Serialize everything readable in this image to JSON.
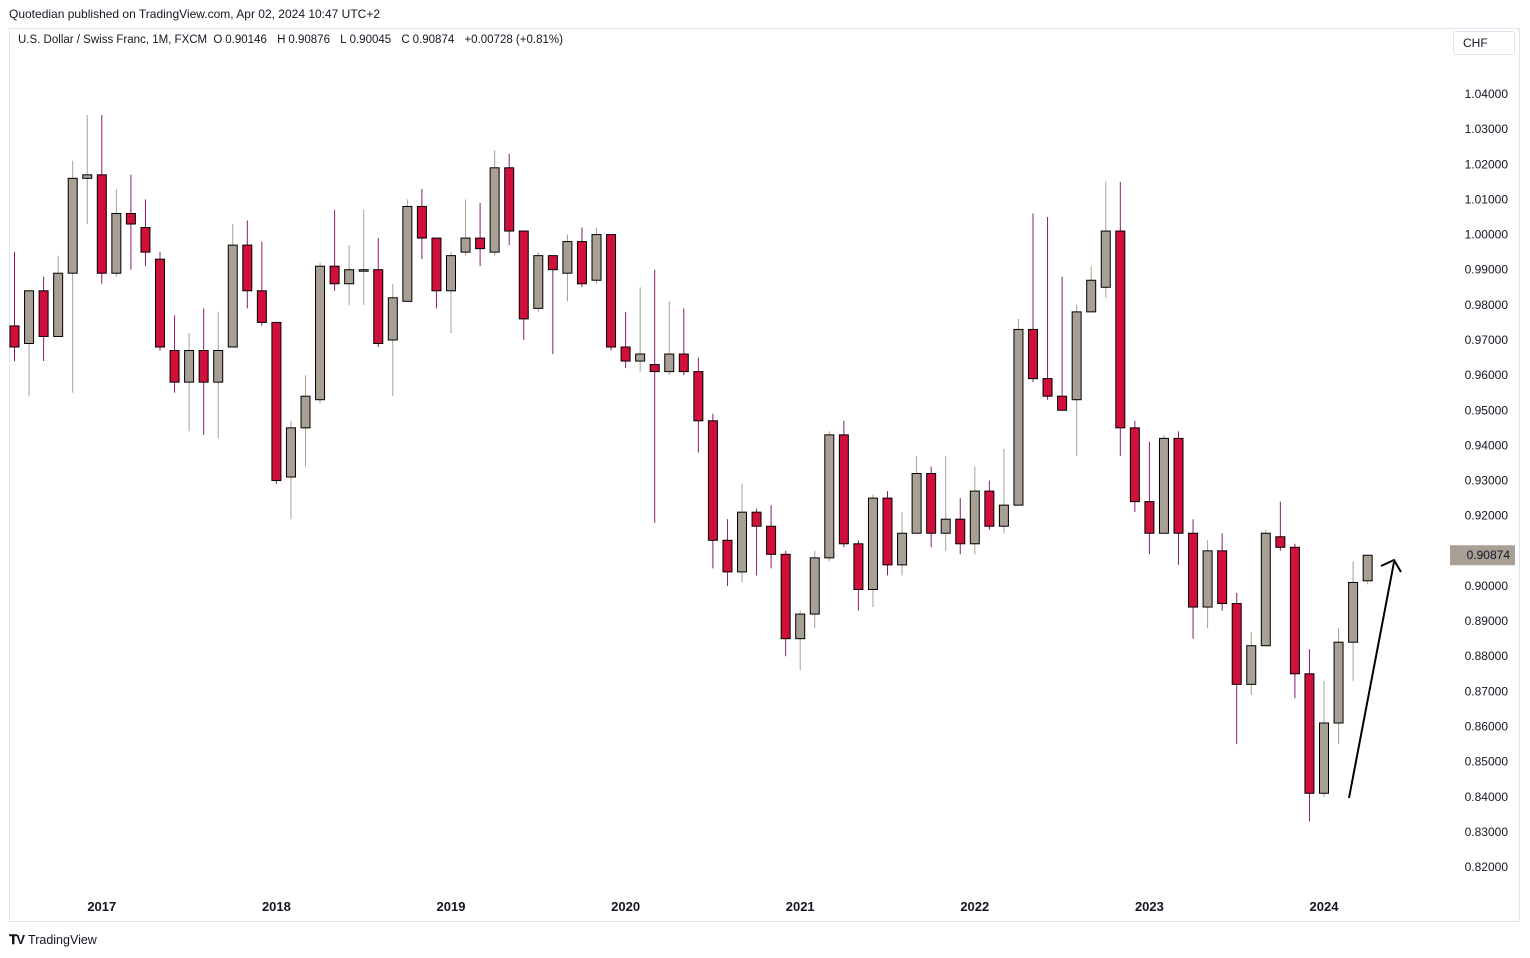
{
  "header": {
    "published": "Quotedian published on TradingView.com, Apr 02, 2024 10:47 UTC+2"
  },
  "legend": {
    "symbol": "U.S. Dollar / Swiss Franc, 1M, FXCM",
    "open_label": "O",
    "open": "0.90146",
    "high_label": "H",
    "high": "0.90876",
    "low_label": "L",
    "low": "0.90045",
    "close_label": "C",
    "close": "0.90874",
    "change": "+0.00728 (+0.81%)"
  },
  "currency": "CHF",
  "footer": {
    "logo_text": "TradingView"
  },
  "colors": {
    "up": "#a89f95",
    "down": "#d0103a",
    "up_wick": "#a89f95",
    "down_wick": "#8a1c6e",
    "price_label_bg": "#a89f95",
    "arrow": "#000000"
  },
  "chart_data": {
    "type": "candlestick",
    "title": "",
    "xlabel": "",
    "ylabel": "",
    "ylim": [
      0.815,
      1.067
    ],
    "y_ticks": [
      "1.04000",
      "1.03000",
      "1.02000",
      "1.01000",
      "1.00000",
      "0.99000",
      "0.98000",
      "0.97000",
      "0.96000",
      "0.95000",
      "0.94000",
      "0.93000",
      "0.92000",
      "0.91000",
      "0.90000",
      "0.89000",
      "0.88000",
      "0.87000",
      "0.86000",
      "0.85000",
      "0.84000",
      "0.83000",
      "0.82000"
    ],
    "x_ticks": [
      "2017",
      "2018",
      "2019",
      "2020",
      "2021",
      "2022",
      "2023",
      "2024"
    ],
    "last_price": "0.90874",
    "candles": [
      {
        "date": "2016-07",
        "o": 0.974,
        "h": 0.995,
        "l": 0.964,
        "c": 0.968
      },
      {
        "date": "2016-08",
        "o": 0.969,
        "h": 0.984,
        "l": 0.954,
        "c": 0.984
      },
      {
        "date": "2016-09",
        "o": 0.984,
        "h": 0.988,
        "l": 0.964,
        "c": 0.971
      },
      {
        "date": "2016-10",
        "o": 0.971,
        "h": 0.994,
        "l": 0.971,
        "c": 0.989
      },
      {
        "date": "2016-11",
        "o": 0.989,
        "h": 1.021,
        "l": 0.955,
        "c": 1.016
      },
      {
        "date": "2016-12",
        "o": 1.016,
        "h": 1.034,
        "l": 1.003,
        "c": 1.017
      },
      {
        "date": "2017-01",
        "o": 1.017,
        "h": 1.034,
        "l": 0.986,
        "c": 0.989
      },
      {
        "date": "2017-02",
        "o": 0.989,
        "h": 1.013,
        "l": 0.988,
        "c": 1.006
      },
      {
        "date": "2017-03",
        "o": 1.006,
        "h": 1.017,
        "l": 0.99,
        "c": 1.003
      },
      {
        "date": "2017-04",
        "o": 1.002,
        "h": 1.01,
        "l": 0.991,
        "c": 0.995
      },
      {
        "date": "2017-05",
        "o": 0.993,
        "h": 0.995,
        "l": 0.967,
        "c": 0.968
      },
      {
        "date": "2017-06",
        "o": 0.967,
        "h": 0.977,
        "l": 0.955,
        "c": 0.958
      },
      {
        "date": "2017-07",
        "o": 0.958,
        "h": 0.972,
        "l": 0.944,
        "c": 0.967
      },
      {
        "date": "2017-08",
        "o": 0.967,
        "h": 0.979,
        "l": 0.943,
        "c": 0.958
      },
      {
        "date": "2017-09",
        "o": 0.958,
        "h": 0.978,
        "l": 0.942,
        "c": 0.967
      },
      {
        "date": "2017-10",
        "o": 0.968,
        "h": 1.003,
        "l": 0.968,
        "c": 0.997
      },
      {
        "date": "2017-11",
        "o": 0.997,
        "h": 1.004,
        "l": 0.979,
        "c": 0.984
      },
      {
        "date": "2017-12",
        "o": 0.984,
        "h": 0.998,
        "l": 0.974,
        "c": 0.975
      },
      {
        "date": "2018-01",
        "o": 0.975,
        "h": 0.975,
        "l": 0.929,
        "c": 0.93
      },
      {
        "date": "2018-02",
        "o": 0.931,
        "h": 0.947,
        "l": 0.919,
        "c": 0.945
      },
      {
        "date": "2018-03",
        "o": 0.945,
        "h": 0.96,
        "l": 0.934,
        "c": 0.954
      },
      {
        "date": "2018-04",
        "o": 0.953,
        "h": 0.992,
        "l": 0.952,
        "c": 0.991
      },
      {
        "date": "2018-05",
        "o": 0.991,
        "h": 1.007,
        "l": 0.984,
        "c": 0.986
      },
      {
        "date": "2018-06",
        "o": 0.986,
        "h": 0.997,
        "l": 0.98,
        "c": 0.99
      },
      {
        "date": "2018-07",
        "o": 0.99,
        "h": 1.007,
        "l": 0.98,
        "c": 0.99
      },
      {
        "date": "2018-08",
        "o": 0.99,
        "h": 0.999,
        "l": 0.968,
        "c": 0.969
      },
      {
        "date": "2018-09",
        "o": 0.97,
        "h": 0.986,
        "l": 0.954,
        "c": 0.982
      },
      {
        "date": "2018-10",
        "o": 0.981,
        "h": 1.01,
        "l": 0.981,
        "c": 1.008
      },
      {
        "date": "2018-11",
        "o": 1.008,
        "h": 1.013,
        "l": 0.993,
        "c": 0.999
      },
      {
        "date": "2018-12",
        "o": 0.999,
        "h": 0.999,
        "l": 0.979,
        "c": 0.984
      },
      {
        "date": "2019-01",
        "o": 0.984,
        "h": 0.995,
        "l": 0.972,
        "c": 0.994
      },
      {
        "date": "2019-02",
        "o": 0.995,
        "h": 1.01,
        "l": 0.994,
        "c": 0.999
      },
      {
        "date": "2019-03",
        "o": 0.999,
        "h": 1.009,
        "l": 0.991,
        "c": 0.996
      },
      {
        "date": "2019-04",
        "o": 0.995,
        "h": 1.024,
        "l": 0.994,
        "c": 1.019
      },
      {
        "date": "2019-05",
        "o": 1.019,
        "h": 1.023,
        "l": 0.997,
        "c": 1.001
      },
      {
        "date": "2019-06",
        "o": 1.001,
        "h": 1.001,
        "l": 0.97,
        "c": 0.976
      },
      {
        "date": "2019-07",
        "o": 0.979,
        "h": 0.995,
        "l": 0.978,
        "c": 0.994
      },
      {
        "date": "2019-08",
        "o": 0.994,
        "h": 0.994,
        "l": 0.966,
        "c": 0.99
      },
      {
        "date": "2019-09",
        "o": 0.989,
        "h": 1.0,
        "l": 0.981,
        "c": 0.998
      },
      {
        "date": "2019-10",
        "o": 0.998,
        "h": 1.002,
        "l": 0.985,
        "c": 0.986
      },
      {
        "date": "2019-11",
        "o": 0.987,
        "h": 1.002,
        "l": 0.986,
        "c": 1.0
      },
      {
        "date": "2019-12",
        "o": 1.0,
        "h": 1.0,
        "l": 0.967,
        "c": 0.968
      },
      {
        "date": "2020-01",
        "o": 0.968,
        "h": 0.978,
        "l": 0.962,
        "c": 0.964
      },
      {
        "date": "2020-02",
        "o": 0.964,
        "h": 0.985,
        "l": 0.961,
        "c": 0.966
      },
      {
        "date": "2020-03",
        "o": 0.963,
        "h": 0.99,
        "l": 0.918,
        "c": 0.961
      },
      {
        "date": "2020-04",
        "o": 0.961,
        "h": 0.981,
        "l": 0.96,
        "c": 0.966
      },
      {
        "date": "2020-05",
        "o": 0.966,
        "h": 0.979,
        "l": 0.96,
        "c": 0.961
      },
      {
        "date": "2020-06",
        "o": 0.961,
        "h": 0.965,
        "l": 0.938,
        "c": 0.947
      },
      {
        "date": "2020-07",
        "o": 0.947,
        "h": 0.949,
        "l": 0.905,
        "c": 0.913
      },
      {
        "date": "2020-08",
        "o": 0.913,
        "h": 0.919,
        "l": 0.9,
        "c": 0.904
      },
      {
        "date": "2020-09",
        "o": 0.904,
        "h": 0.929,
        "l": 0.901,
        "c": 0.921
      },
      {
        "date": "2020-10",
        "o": 0.921,
        "h": 0.922,
        "l": 0.903,
        "c": 0.917
      },
      {
        "date": "2020-11",
        "o": 0.917,
        "h": 0.923,
        "l": 0.905,
        "c": 0.909
      },
      {
        "date": "2020-12",
        "o": 0.909,
        "h": 0.91,
        "l": 0.88,
        "c": 0.885
      },
      {
        "date": "2021-01",
        "o": 0.885,
        "h": 0.893,
        "l": 0.876,
        "c": 0.892
      },
      {
        "date": "2021-02",
        "o": 0.892,
        "h": 0.91,
        "l": 0.888,
        "c": 0.908
      },
      {
        "date": "2021-03",
        "o": 0.908,
        "h": 0.944,
        "l": 0.907,
        "c": 0.943
      },
      {
        "date": "2021-04",
        "o": 0.943,
        "h": 0.947,
        "l": 0.911,
        "c": 0.912
      },
      {
        "date": "2021-05",
        "o": 0.912,
        "h": 0.913,
        "l": 0.893,
        "c": 0.899
      },
      {
        "date": "2021-06",
        "o": 0.899,
        "h": 0.926,
        "l": 0.894,
        "c": 0.925
      },
      {
        "date": "2021-07",
        "o": 0.925,
        "h": 0.927,
        "l": 0.903,
        "c": 0.906
      },
      {
        "date": "2021-08",
        "o": 0.906,
        "h": 0.921,
        "l": 0.903,
        "c": 0.915
      },
      {
        "date": "2021-09",
        "o": 0.915,
        "h": 0.937,
        "l": 0.915,
        "c": 0.932
      },
      {
        "date": "2021-10",
        "o": 0.932,
        "h": 0.934,
        "l": 0.911,
        "c": 0.915
      },
      {
        "date": "2021-11",
        "o": 0.915,
        "h": 0.937,
        "l": 0.91,
        "c": 0.919
      },
      {
        "date": "2021-12",
        "o": 0.919,
        "h": 0.925,
        "l": 0.909,
        "c": 0.912
      },
      {
        "date": "2022-01",
        "o": 0.912,
        "h": 0.934,
        "l": 0.909,
        "c": 0.927
      },
      {
        "date": "2022-02",
        "o": 0.927,
        "h": 0.93,
        "l": 0.916,
        "c": 0.917
      },
      {
        "date": "2022-03",
        "o": 0.917,
        "h": 0.939,
        "l": 0.915,
        "c": 0.923
      },
      {
        "date": "2022-04",
        "o": 0.923,
        "h": 0.976,
        "l": 0.923,
        "c": 0.973
      },
      {
        "date": "2022-05",
        "o": 0.973,
        "h": 1.006,
        "l": 0.958,
        "c": 0.959
      },
      {
        "date": "2022-06",
        "o": 0.959,
        "h": 1.005,
        "l": 0.953,
        "c": 0.954
      },
      {
        "date": "2022-07",
        "o": 0.954,
        "h": 0.988,
        "l": 0.95,
        "c": 0.95
      },
      {
        "date": "2022-08",
        "o": 0.953,
        "h": 0.98,
        "l": 0.937,
        "c": 0.978
      },
      {
        "date": "2022-09",
        "o": 0.978,
        "h": 0.991,
        "l": 0.978,
        "c": 0.987
      },
      {
        "date": "2022-10",
        "o": 0.985,
        "h": 1.015,
        "l": 0.982,
        "c": 1.001
      },
      {
        "date": "2022-11",
        "o": 1.001,
        "h": 1.015,
        "l": 0.937,
        "c": 0.945
      },
      {
        "date": "2022-12",
        "o": 0.945,
        "h": 0.947,
        "l": 0.921,
        "c": 0.924
      },
      {
        "date": "2023-01",
        "o": 0.924,
        "h": 0.941,
        "l": 0.909,
        "c": 0.915
      },
      {
        "date": "2023-02",
        "o": 0.915,
        "h": 0.943,
        "l": 0.915,
        "c": 0.942
      },
      {
        "date": "2023-03",
        "o": 0.942,
        "h": 0.944,
        "l": 0.906,
        "c": 0.915
      },
      {
        "date": "2023-04",
        "o": 0.915,
        "h": 0.919,
        "l": 0.885,
        "c": 0.894
      },
      {
        "date": "2023-05",
        "o": 0.894,
        "h": 0.913,
        "l": 0.888,
        "c": 0.91
      },
      {
        "date": "2023-06",
        "o": 0.91,
        "h": 0.915,
        "l": 0.893,
        "c": 0.895
      },
      {
        "date": "2023-07",
        "o": 0.895,
        "h": 0.898,
        "l": 0.855,
        "c": 0.872
      },
      {
        "date": "2023-08",
        "o": 0.872,
        "h": 0.887,
        "l": 0.869,
        "c": 0.883
      },
      {
        "date": "2023-09",
        "o": 0.883,
        "h": 0.916,
        "l": 0.883,
        "c": 0.915
      },
      {
        "date": "2023-10",
        "o": 0.914,
        "h": 0.924,
        "l": 0.91,
        "c": 0.911
      },
      {
        "date": "2023-11",
        "o": 0.911,
        "h": 0.912,
        "l": 0.868,
        "c": 0.875
      },
      {
        "date": "2023-12",
        "o": 0.875,
        "h": 0.882,
        "l": 0.833,
        "c": 0.841
      },
      {
        "date": "2024-01",
        "o": 0.841,
        "h": 0.873,
        "l": 0.84,
        "c": 0.861
      },
      {
        "date": "2024-02",
        "o": 0.861,
        "h": 0.888,
        "l": 0.855,
        "c": 0.884
      },
      {
        "date": "2024-03",
        "o": 0.884,
        "h": 0.907,
        "l": 0.873,
        "c": 0.901
      },
      {
        "date": "2024-04",
        "o": 0.90146,
        "h": 0.90876,
        "l": 0.90045,
        "c": 0.90874
      }
    ]
  }
}
